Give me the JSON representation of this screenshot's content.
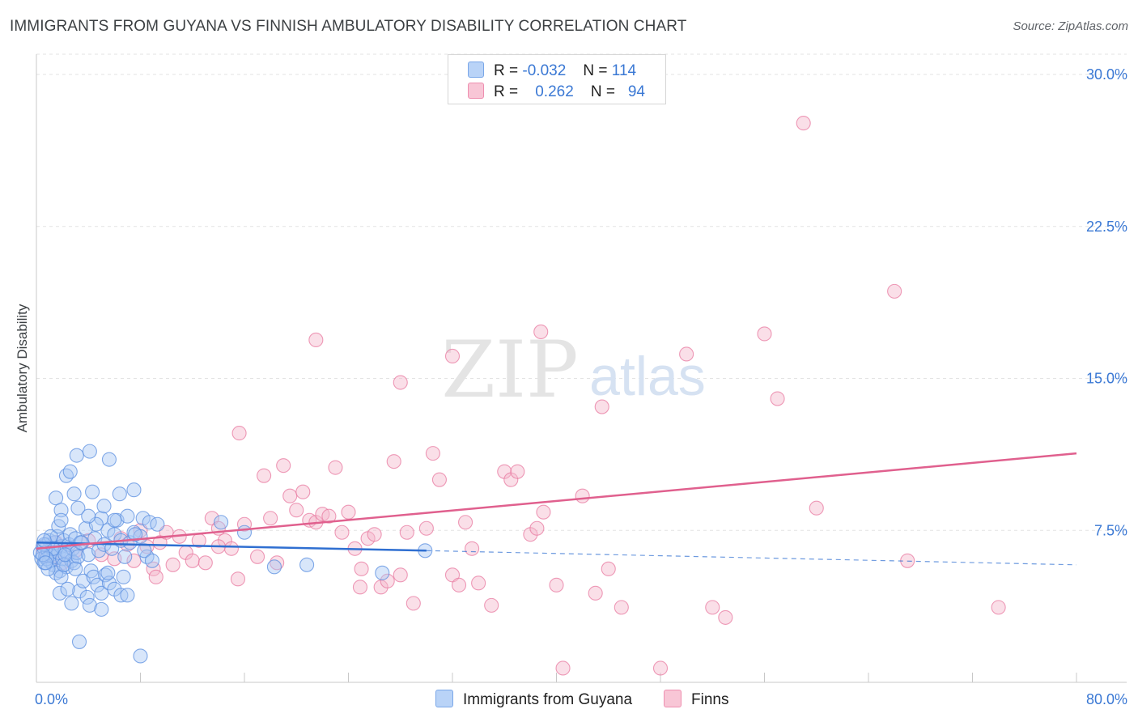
{
  "title": "IMMIGRANTS FROM GUYANA VS FINNISH AMBULATORY DISABILITY CORRELATION CHART",
  "source": "Source: ZipAtlas.com",
  "watermark": {
    "zip": "ZIP",
    "atlas": "atlas"
  },
  "legend_top": {
    "rows": [
      {
        "r_label": "R =",
        "r_value": "-0.032",
        "n_label": "N =",
        "n_value": "114"
      },
      {
        "r_label": "R =",
        "r_value": "0.262",
        "n_label": "N =",
        "n_value": "94"
      }
    ]
  },
  "legend_bottom": [
    "Immigrants from Guyana",
    "Finns"
  ],
  "chart_data": {
    "type": "scatter",
    "title": "IMMIGRANTS FROM GUYANA VS FINNISH AMBULATORY DISABILITY CORRELATION CHART",
    "xlabel": "",
    "ylabel": "Ambulatory Disability",
    "xlim": [
      0,
      80
    ],
    "ylim": [
      0,
      31
    ],
    "x_tick_labels": [
      "0.0%",
      "80.0%"
    ],
    "y_ticks": [
      7.5,
      15.0,
      22.5,
      30.0
    ],
    "y_tick_labels": [
      "7.5%",
      "15.0%",
      "22.5%",
      "30.0%"
    ],
    "grid": true,
    "legend_position": "top-center",
    "colors": {
      "blue": "#5b8fe0",
      "blue_fill": "#a9c8f3",
      "pink": "#e87aa0",
      "pink_fill": "#f5b8cc",
      "trend_blue": "#2f6fd1",
      "trend_pink": "#e0608e",
      "axis_label": "#3a78d4"
    },
    "series": [
      {
        "name": "Immigrants from Guyana",
        "color": "#5b8fe0",
        "R": -0.032,
        "N": 114,
        "trend": {
          "x": [
            0,
            30
          ],
          "y": [
            6.9,
            6.5
          ],
          "dashed_x": [
            30,
            80
          ],
          "dashed_y": [
            6.5,
            5.8
          ]
        },
        "points": [
          [
            0.3,
            6.4
          ],
          [
            0.4,
            6.1
          ],
          [
            0.5,
            6.7
          ],
          [
            0.6,
            5.9
          ],
          [
            0.7,
            6.2
          ],
          [
            0.8,
            6.8
          ],
          [
            0.9,
            6.5
          ],
          [
            1.0,
            6.0
          ],
          [
            1.0,
            7.0
          ],
          [
            1.1,
            6.3
          ],
          [
            1.2,
            6.6
          ],
          [
            1.3,
            5.8
          ],
          [
            1.4,
            6.9
          ],
          [
            1.5,
            6.2
          ],
          [
            1.6,
            7.2
          ],
          [
            1.7,
            6.4
          ],
          [
            1.8,
            5.5
          ],
          [
            1.9,
            6.7
          ],
          [
            2.0,
            6.1
          ],
          [
            2.1,
            7.0
          ],
          [
            2.2,
            6.5
          ],
          [
            2.3,
            5.7
          ],
          [
            2.4,
            6.3
          ],
          [
            2.5,
            6.8
          ],
          [
            2.6,
            7.3
          ],
          [
            2.7,
            6.0
          ],
          [
            2.8,
            6.6
          ],
          [
            2.9,
            5.9
          ],
          [
            3.0,
            7.1
          ],
          [
            3.1,
            6.4
          ],
          [
            1.1,
            7.2
          ],
          [
            1.3,
            6.6
          ],
          [
            1.5,
            5.4
          ],
          [
            1.7,
            7.7
          ],
          [
            1.9,
            5.2
          ],
          [
            2.1,
            5.8
          ],
          [
            0.8,
            6.1
          ],
          [
            0.6,
            6.8
          ],
          [
            0.5,
            6.3
          ],
          [
            0.9,
            5.6
          ],
          [
            3.2,
            6.2
          ],
          [
            3.5,
            6.9
          ],
          [
            3.8,
            7.6
          ],
          [
            4.0,
            6.3
          ],
          [
            4.2,
            5.5
          ],
          [
            4.5,
            7.1
          ],
          [
            4.8,
            6.5
          ],
          [
            5.0,
            8.1
          ],
          [
            5.2,
            6.8
          ],
          [
            5.5,
            7.5
          ],
          [
            5.8,
            6.6
          ],
          [
            6.0,
            7.3
          ],
          [
            6.2,
            8.0
          ],
          [
            6.5,
            7.0
          ],
          [
            6.8,
            6.2
          ],
          [
            7.0,
            8.2
          ],
          [
            7.2,
            6.9
          ],
          [
            7.5,
            7.4
          ],
          [
            3.0,
            5.6
          ],
          [
            3.3,
            4.5
          ],
          [
            3.6,
            5.0
          ],
          [
            3.9,
            4.2
          ],
          [
            4.1,
            3.8
          ],
          [
            4.4,
            5.2
          ],
          [
            4.7,
            4.8
          ],
          [
            5.0,
            4.4
          ],
          [
            5.3,
            5.3
          ],
          [
            5.6,
            4.9
          ],
          [
            6.0,
            4.6
          ],
          [
            1.5,
            9.1
          ],
          [
            1.9,
            8.5
          ],
          [
            2.3,
            10.2
          ],
          [
            2.6,
            10.4
          ],
          [
            2.9,
            9.3
          ],
          [
            3.2,
            8.6
          ],
          [
            3.1,
            11.2
          ],
          [
            4.1,
            11.4
          ],
          [
            4.3,
            9.4
          ],
          [
            4.6,
            7.8
          ],
          [
            4.0,
            8.2
          ],
          [
            5.2,
            8.7
          ],
          [
            5.0,
            3.6
          ],
          [
            5.5,
            5.4
          ],
          [
            6.4,
            9.3
          ],
          [
            6.5,
            4.3
          ],
          [
            7.0,
            4.3
          ],
          [
            7.5,
            9.5
          ],
          [
            6.0,
            8.0
          ],
          [
            6.7,
            5.2
          ],
          [
            8.0,
            7.2
          ],
          [
            8.5,
            6.2
          ],
          [
            8.2,
            8.1
          ],
          [
            8.7,
            7.9
          ],
          [
            7.6,
            7.3
          ],
          [
            8.3,
            6.5
          ],
          [
            8.9,
            6.0
          ],
          [
            9.3,
            7.8
          ],
          [
            14.2,
            7.9
          ],
          [
            16.0,
            7.4
          ],
          [
            18.3,
            5.7
          ],
          [
            20.8,
            5.8
          ],
          [
            26.6,
            5.4
          ],
          [
            29.9,
            6.5
          ],
          [
            3.3,
            2.0
          ],
          [
            8.0,
            1.3
          ],
          [
            1.8,
            4.4
          ],
          [
            2.4,
            4.6
          ],
          [
            2.7,
            3.9
          ],
          [
            1.9,
            8.0
          ],
          [
            2.2,
            6.3
          ],
          [
            0.6,
            7.0
          ],
          [
            0.7,
            5.9
          ],
          [
            5.6,
            11.0
          ],
          [
            3.4,
            6.9
          ]
        ]
      },
      {
        "name": "Finns",
        "color": "#e87aa0",
        "R": 0.262,
        "N": 94,
        "trend": {
          "x": [
            0,
            80
          ],
          "y": [
            6.6,
            11.3
          ]
        },
        "points": [
          [
            0.5,
            6.6
          ],
          [
            1.0,
            6.2
          ],
          [
            1.5,
            6.9
          ],
          [
            2.0,
            5.9
          ],
          [
            3.0,
            6.5
          ],
          [
            4.0,
            7.0
          ],
          [
            5.0,
            6.3
          ],
          [
            6.0,
            6.1
          ],
          [
            6.5,
            7.1
          ],
          [
            7.0,
            6.8
          ],
          [
            7.5,
            6.0
          ],
          [
            8.0,
            7.5
          ],
          [
            8.5,
            6.7
          ],
          [
            9.0,
            5.6
          ],
          [
            9.5,
            6.9
          ],
          [
            10.0,
            7.4
          ],
          [
            10.5,
            5.8
          ],
          [
            11.0,
            7.2
          ],
          [
            11.5,
            6.4
          ],
          [
            12.0,
            6.0
          ],
          [
            12.5,
            7.0
          ],
          [
            13.0,
            5.9
          ],
          [
            13.5,
            8.1
          ],
          [
            14.0,
            7.6
          ],
          [
            14.5,
            7.0
          ],
          [
            15.0,
            6.6
          ],
          [
            15.5,
            5.1
          ],
          [
            16.0,
            7.8
          ],
          [
            17.0,
            6.2
          ],
          [
            17.5,
            10.2
          ],
          [
            18.0,
            8.1
          ],
          [
            18.5,
            5.9
          ],
          [
            19.0,
            10.7
          ],
          [
            19.5,
            9.2
          ],
          [
            20.0,
            8.5
          ],
          [
            20.5,
            9.4
          ],
          [
            21.0,
            8.0
          ],
          [
            21.5,
            7.9
          ],
          [
            22.0,
            8.3
          ],
          [
            22.5,
            8.2
          ],
          [
            23.0,
            10.6
          ],
          [
            23.5,
            7.4
          ],
          [
            24.0,
            8.4
          ],
          [
            24.5,
            6.6
          ],
          [
            25.0,
            5.6
          ],
          [
            25.5,
            7.1
          ],
          [
            26.0,
            7.3
          ],
          [
            26.5,
            4.7
          ],
          [
            27.0,
            5.0
          ],
          [
            27.5,
            10.9
          ],
          [
            28.0,
            5.3
          ],
          [
            28.5,
            7.4
          ],
          [
            29.0,
            3.9
          ],
          [
            30.0,
            7.6
          ],
          [
            30.5,
            11.3
          ],
          [
            31.0,
            10.0
          ],
          [
            32.0,
            5.3
          ],
          [
            32.5,
            4.8
          ],
          [
            33.0,
            7.9
          ],
          [
            33.5,
            6.6
          ],
          [
            34.0,
            4.9
          ],
          [
            35.0,
            3.8
          ],
          [
            36.0,
            10.4
          ],
          [
            36.5,
            10.0
          ],
          [
            37.0,
            10.4
          ],
          [
            38.0,
            7.3
          ],
          [
            38.5,
            7.6
          ],
          [
            39.0,
            8.4
          ],
          [
            40.0,
            4.8
          ],
          [
            40.5,
            0.7
          ],
          [
            42.0,
            9.2
          ],
          [
            43.0,
            4.4
          ],
          [
            43.5,
            13.6
          ],
          [
            44.0,
            5.6
          ],
          [
            45.0,
            3.7
          ],
          [
            48.0,
            0.7
          ],
          [
            50.0,
            16.2
          ],
          [
            52.0,
            3.7
          ],
          [
            53.0,
            3.2
          ],
          [
            56.0,
            17.2
          ],
          [
            57.0,
            14.0
          ],
          [
            60.0,
            8.6
          ],
          [
            66.0,
            19.3
          ],
          [
            67.0,
            6.0
          ],
          [
            74.0,
            3.7
          ],
          [
            59.0,
            27.6
          ],
          [
            21.5,
            16.9
          ],
          [
            28.0,
            14.8
          ],
          [
            32.0,
            16.1
          ],
          [
            38.8,
            17.3
          ],
          [
            15.6,
            12.3
          ],
          [
            14.0,
            6.7
          ],
          [
            9.2,
            5.2
          ],
          [
            24.9,
            4.7
          ]
        ]
      }
    ]
  }
}
